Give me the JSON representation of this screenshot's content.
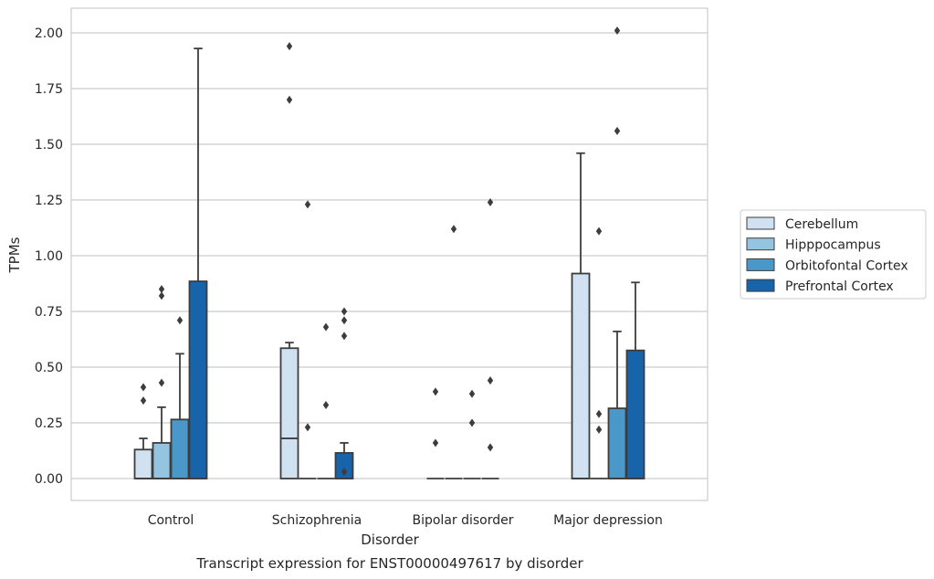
{
  "chart_data": {
    "type": "box",
    "categories": [
      "Control",
      "Schizophrenia",
      "Bipolar disorder",
      "Major depression"
    ],
    "xlabel": "Disorder",
    "ylabel": "TPMs",
    "caption": "Transcript expression for ENST00000497617 by disorder",
    "ylim": [
      -0.1,
      2.11
    ],
    "yticks": [
      0.0,
      0.25,
      0.5,
      0.75,
      1.0,
      1.25,
      1.5,
      1.75,
      2.0
    ],
    "ytick_labels": [
      "0.00",
      "0.25",
      "0.50",
      "0.75",
      "1.00",
      "1.25",
      "1.50",
      "1.75",
      "2.00"
    ],
    "grid": "horizontal",
    "legend_position": "right",
    "series": [
      {
        "name": "Cerebellum",
        "color": "#d0e1f2",
        "boxes": [
          {
            "q1": 0,
            "median": 0,
            "q3": 0.13,
            "whisker_low": 0,
            "whisker_high": 0.18,
            "outliers": [
              0.35,
              0.41
            ]
          },
          {
            "q1": 0,
            "median": 0.18,
            "q3": 0.585,
            "whisker_low": 0,
            "whisker_high": 0.61,
            "outliers": [
              1.7,
              1.94
            ]
          },
          {
            "q1": 0,
            "median": 0,
            "q3": 0,
            "whisker_low": 0,
            "whisker_high": 0,
            "outliers": [
              0.16,
              0.39
            ]
          },
          {
            "q1": 0,
            "median": 0,
            "q3": 0.92,
            "whisker_low": 0,
            "whisker_high": 1.46,
            "outliers": []
          }
        ]
      },
      {
        "name": "Hipppocampus",
        "color": "#94c4df",
        "boxes": [
          {
            "q1": 0,
            "median": 0,
            "q3": 0.16,
            "whisker_low": 0,
            "whisker_high": 0.32,
            "outliers": [
              0.43,
              0.82,
              0.85
            ]
          },
          {
            "q1": 0,
            "median": 0,
            "q3": 0,
            "whisker_low": 0,
            "whisker_high": 0,
            "outliers": [
              0.23,
              1.23
            ]
          },
          {
            "q1": 0,
            "median": 0,
            "q3": 0,
            "whisker_low": 0,
            "whisker_high": 0,
            "outliers": [
              1.12
            ]
          },
          {
            "q1": 0,
            "median": 0,
            "q3": 0,
            "whisker_low": 0,
            "whisker_high": 0,
            "outliers": [
              0.22,
              0.29,
              1.11
            ]
          }
        ]
      },
      {
        "name": "Orbitofontal Cortex",
        "color": "#4a98c9",
        "boxes": [
          {
            "q1": 0,
            "median": 0,
            "q3": 0.265,
            "whisker_low": 0,
            "whisker_high": 0.56,
            "outliers": [
              0.71
            ]
          },
          {
            "q1": 0,
            "median": 0,
            "q3": 0,
            "whisker_low": 0,
            "whisker_high": 0,
            "outliers": [
              0.33,
              0.68
            ]
          },
          {
            "q1": 0,
            "median": 0,
            "q3": 0,
            "whisker_low": 0,
            "whisker_high": 0,
            "outliers": [
              0.25,
              0.38
            ]
          },
          {
            "q1": 0,
            "median": 0,
            "q3": 0.315,
            "whisker_low": 0,
            "whisker_high": 0.66,
            "outliers": [
              1.56,
              2.01
            ]
          }
        ]
      },
      {
        "name": "Prefrontal Cortex",
        "color": "#1764ab",
        "boxes": [
          {
            "q1": 0,
            "median": 0,
            "q3": 0.885,
            "whisker_low": 0,
            "whisker_high": 1.93,
            "outliers": []
          },
          {
            "q1": 0,
            "median": 0,
            "q3": 0.115,
            "whisker_low": 0,
            "whisker_high": 0.16,
            "outliers": [
              0.03,
              0.64,
              0.71,
              0.75
            ]
          },
          {
            "q1": 0,
            "median": 0,
            "q3": 0,
            "whisker_low": 0,
            "whisker_high": 0,
            "outliers": [
              0.14,
              0.44,
              1.24
            ]
          },
          {
            "q1": 0,
            "median": 0,
            "q3": 0.575,
            "whisker_low": 0,
            "whisker_high": 0.88,
            "outliers": []
          }
        ]
      }
    ]
  }
}
